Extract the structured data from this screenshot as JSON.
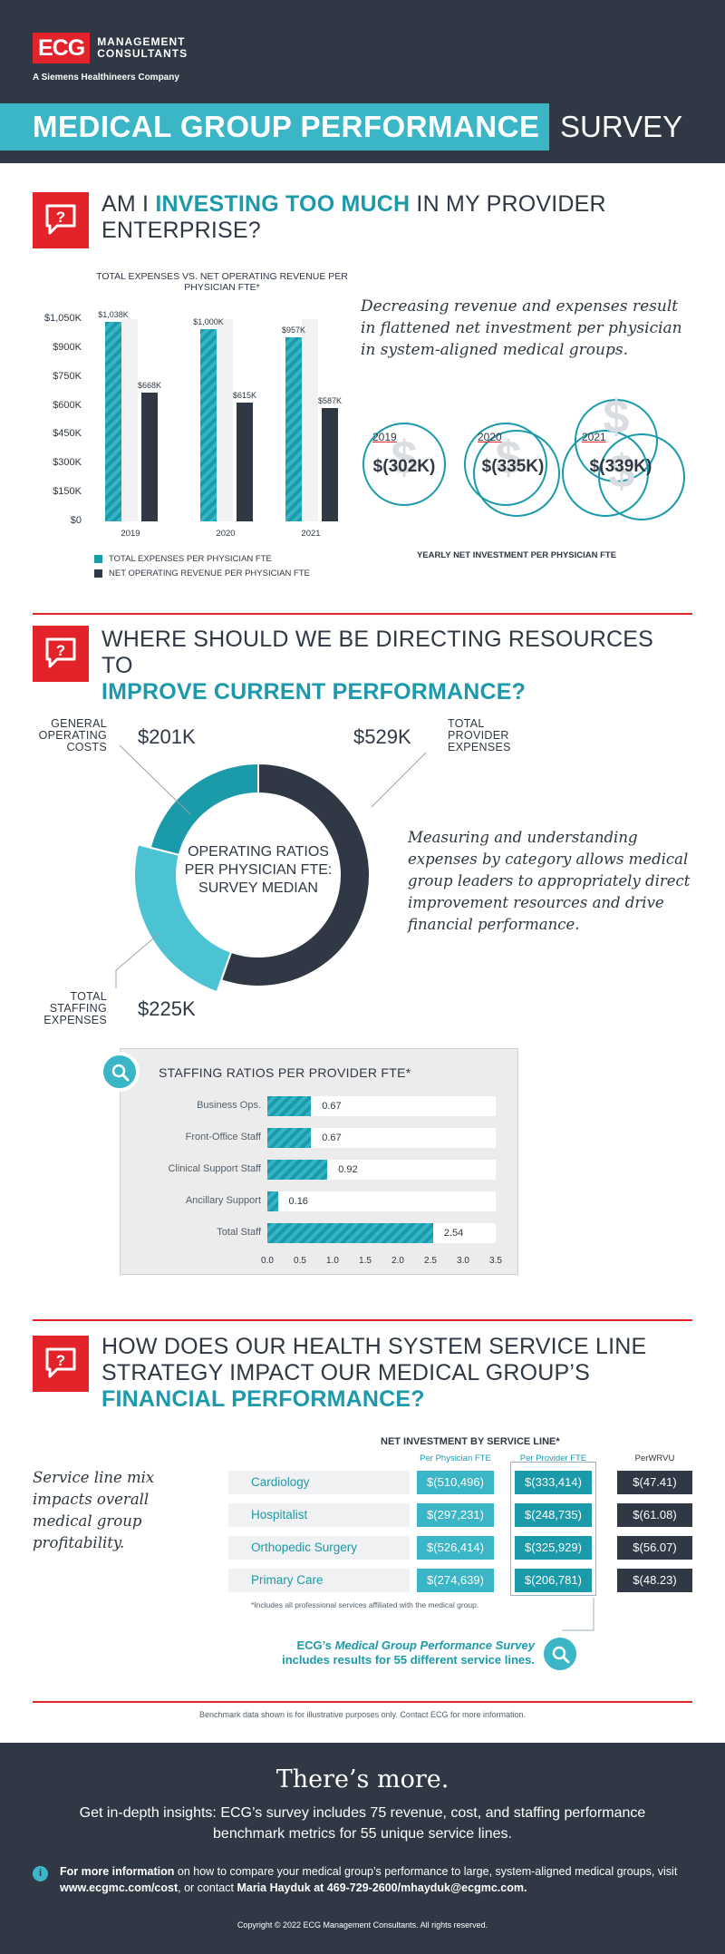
{
  "brand": {
    "logo_mark": "ECG",
    "logo_line1": "MANAGEMENT",
    "logo_line2": "CONSULTANTS",
    "tagline": "A Siemens Healthineers Company"
  },
  "title": {
    "bold": "MEDICAL GROUP PERFORMANCE",
    "light": "SURVEY"
  },
  "section1": {
    "icon": "chat-question-icon",
    "heading_pre": "AM I ",
    "heading_hl": "INVESTING TOO MUCH",
    "heading_post": " IN MY PROVIDER",
    "heading_line2": "ENTERPRISE?",
    "note": "Decreasing revenue and expenses result in flattened net investment per physician in system-aligned medical groups.",
    "net_investment": [
      {
        "year": "2019",
        "value": "$(302K)"
      },
      {
        "year": "2020",
        "value": "$(335K)"
      },
      {
        "year": "2021",
        "value": "$(339K)"
      }
    ],
    "net_caption": "YEARLY NET INVESTMENT PER PHYSICIAN FTE"
  },
  "chart_data": {
    "type": "bar",
    "title": "TOTAL EXPENSES VS. NET OPERATING REVENUE PER PHYSICIAN FTE*",
    "categories": [
      "2019",
      "2020",
      "2021"
    ],
    "ylim": [
      0,
      1050
    ],
    "yticks": [
      "$1,050K",
      "$900K",
      "$750K",
      "$600K",
      "$450K",
      "$300K",
      "$150K",
      "$0"
    ],
    "series": [
      {
        "name": "TOTAL EXPENSES PER PHYSICIAN FTE",
        "values": [
          1038,
          1000,
          957
        ],
        "labels": [
          "$1,038K",
          "$1,000K",
          "$957K"
        ],
        "color": "#1b9aaa"
      },
      {
        "name": "NET OPERATING REVENUE PER PHYSICIAN FTE",
        "values": [
          668,
          615,
          587
        ],
        "labels": [
          "$668K",
          "$615K",
          "$587K"
        ],
        "color": "#2f3844"
      }
    ]
  },
  "section2": {
    "icon": "chat-question-icon",
    "heading_line1": "WHERE SHOULD WE BE DIRECTING RESOURCES TO",
    "heading_hl": "IMPROVE CURRENT PERFORMANCE?",
    "donut": {
      "center": "OPERATING RATIOS PER PHYSICIAN FTE: SURVEY MEDIAN",
      "slices": [
        {
          "label_l1": "GENERAL",
          "label_l2": "OPERATING",
          "label_l3": "COSTS",
          "value": "$201K",
          "amount": 201,
          "color": "#1b9aaa"
        },
        {
          "label_l1": "TOTAL",
          "label_l2": "PROVIDER",
          "label_l3": "EXPENSES",
          "value": "$529K",
          "amount": 529,
          "color": "#2f3844"
        },
        {
          "label_l1": "TOTAL",
          "label_l2": "STAFFING",
          "label_l3": "EXPENSES",
          "value": "$225K",
          "amount": 225,
          "color": "#4cc3d3"
        }
      ]
    },
    "note": "Measuring and understanding expenses by category allows medical group leaders to appropriately direct improvement resources and drive financial performance.",
    "staffing": {
      "title": "STAFFING RATIOS PER PROVIDER FTE*",
      "rows": [
        {
          "label": "Business Ops.",
          "value": 0.67,
          "display": "0.67"
        },
        {
          "label": "Front-Office Staff",
          "value": 0.67,
          "display": "0.67"
        },
        {
          "label": "Clinical Support Staff",
          "value": 0.92,
          "display": "0.92"
        },
        {
          "label": "Ancillary Support",
          "value": 0.16,
          "display": "0.16"
        },
        {
          "label": "Total Staff",
          "value": 2.54,
          "display": "2.54"
        }
      ],
      "ticks": [
        "0.0",
        "0.5",
        "1.0",
        "1.5",
        "2.0",
        "2.5",
        "3.0",
        "3.5"
      ],
      "max": 3.5
    }
  },
  "section3": {
    "icon": "chat-question-icon",
    "heading_line1": "HOW DOES OUR HEALTH SYSTEM SERVICE LINE",
    "heading_line2": "STRATEGY IMPACT OUR MEDICAL GROUP’S",
    "heading_hl": "FINANCIAL PERFORMANCE?",
    "note": "Service line mix impacts overall medical group profitability.",
    "table_title": "NET INVESTMENT BY SERVICE LINE*",
    "columns": [
      "Per Physician FTE",
      "Per Provider FTE",
      "PerWRVU"
    ],
    "rows": [
      {
        "name": "Cardiology",
        "v1": "$(510,496)",
        "v2": "$(333,414)",
        "v3": "$(47.41)"
      },
      {
        "name": "Hospitalist",
        "v1": "$(297,231)",
        "v2": "$(248,735)",
        "v3": "$(61.08)"
      },
      {
        "name": "Orthopedic Surgery",
        "v1": "$(526,414)",
        "v2": "$(325,929)",
        "v3": "$(56.07)"
      },
      {
        "name": "Primary Care",
        "v1": "$(274,639)",
        "v2": "$(206,781)",
        "v3": "$(48.23)"
      }
    ],
    "footnote": "*Includes all professional services affiliated with the medical group.",
    "callout_pre": "ECG’s ",
    "callout_italic": "Medical Group Performance Survey",
    "callout_line2": "includes results for 55 different service lines."
  },
  "benchmark_note": "Benchmark data shown is for illustrative purposes only. Contact ECG for more information.",
  "footer": {
    "heading": "There’s more.",
    "body": "Get in-depth insights: ECG’s survey includes 75 revenue, cost, and staffing performance benchmark metrics for 55 unique service lines.",
    "info_bold": "For more information",
    "info_mid": " on how to compare your medical group’s performance to large, system-aligned medical groups, visit ",
    "info_url": "www.ecgmc.com/cost",
    "info_or": ", or contact ",
    "info_contact": "Maria Hayduk at 469-729-2600/mhayduk@ecgmc.com.",
    "copyright": "Copyright © 2022 ECG Management Consultants. All rights reserved."
  }
}
